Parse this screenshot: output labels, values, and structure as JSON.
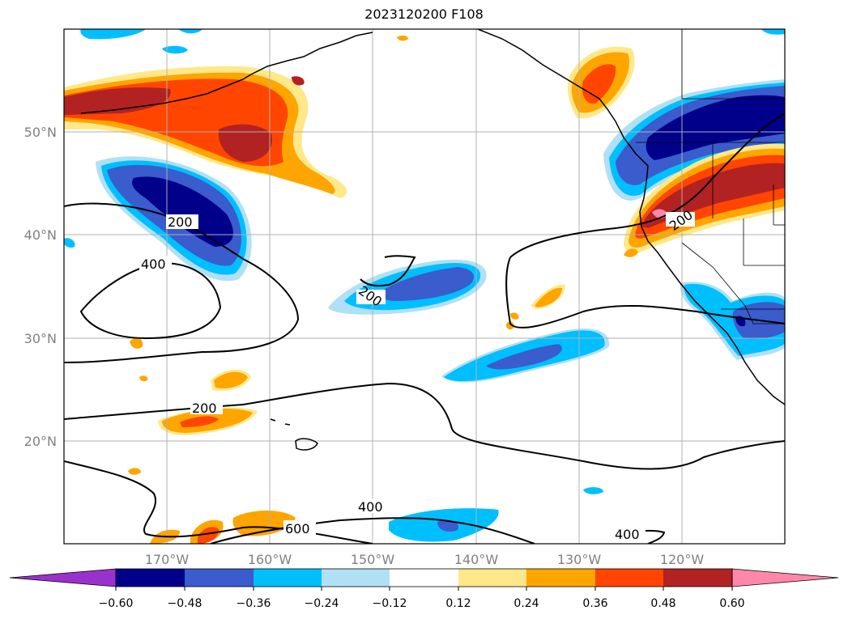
{
  "title": "2023120200 F108",
  "lat_labels": [
    "50°N",
    "40°N",
    "30°N",
    "20°N"
  ],
  "lon_labels": [
    "170°W",
    "160°W",
    "150°W",
    "140°W",
    "130°W",
    "120°W"
  ],
  "contour_labels": [
    "200",
    "400",
    "200",
    "200",
    "200",
    "400",
    "600",
    "400"
  ],
  "colorbar": {
    "ticks": [
      "−0.60",
      "−0.48",
      "−0.36",
      "−0.24",
      "−0.12",
      "0.12",
      "0.24",
      "0.36",
      "0.48",
      "0.60"
    ],
    "colors": [
      "#9932cc",
      "#00008b",
      "#3a5ccc",
      "#00bfff",
      "#b0e0f5",
      "#ffffff",
      "#ffe88a",
      "#ffa500",
      "#ff4500",
      "#b22222",
      "#ff88aa"
    ]
  },
  "fill_colors": {
    "deep_blue": "#00008b",
    "mid_blue": "#3a5ccc",
    "light_blue": "#00bfff",
    "pale_blue": "#b0e0f5",
    "pale_yellow": "#ffe88a",
    "orange": "#ffa500",
    "red_orange": "#ff4500",
    "dark_red": "#b22222",
    "pink": "#ff88aa"
  }
}
